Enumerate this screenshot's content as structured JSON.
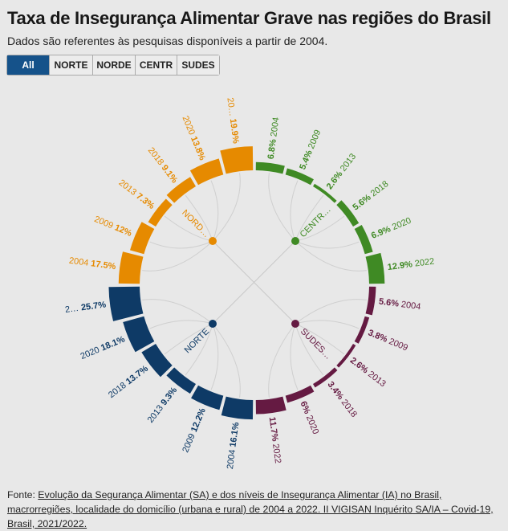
{
  "title": "Taxa de Insegurança Alimentar Grave nas regiões do Brasil",
  "subtitle": "Dados são referentes às pesquisas disponíveis a partir de 2004.",
  "buttons": [
    "All",
    "NORTE",
    "NORDE",
    "CENTR",
    "SUDES"
  ],
  "active_button": "All",
  "footer": {
    "prefix": "Fonte: ",
    "link_text": "Evolução da Segurança Alimentar (SA) e dos níveis de Insegurança Alimentar (IA) no Brasil, macrorregiões, localidade do domicílio (urbana e rural) de 2004 a 2022. II VIGISAN Inquérito SA/IA – Covid-19, Brasil, 2021/2022."
  },
  "chart_data": {
    "type": "radial-bar",
    "unit": "%",
    "categories": [
      "2004",
      "2009",
      "2013",
      "2018",
      "2020",
      "2022"
    ],
    "series": [
      {
        "name": "CENTR…",
        "color": "#3f8a24",
        "values": [
          6.8,
          5.4,
          2.6,
          5.6,
          6.9,
          12.9
        ],
        "value_labels": [
          "6.8%",
          "5.4%",
          "2.6%",
          "5.6%",
          "6.9%",
          "12.9%"
        ],
        "year_labels": [
          "2004",
          "2009",
          "2013",
          "2018",
          "2020",
          "2022"
        ]
      },
      {
        "name": "SUDES…",
        "color": "#651a42",
        "values": [
          5.6,
          3.8,
          2.6,
          3.4,
          6,
          11.7
        ],
        "value_labels": [
          "5.6%",
          "3.8%",
          "2.6%",
          "3.4%",
          "6%",
          "11.7%"
        ],
        "year_labels": [
          "2004",
          "2009",
          "2013",
          "2018",
          "2020",
          "2022"
        ]
      },
      {
        "name": "NORTE",
        "color": "#0e3a66",
        "values": [
          16.1,
          12.2,
          9.3,
          13.7,
          18.1,
          25.7
        ],
        "value_labels": [
          "16.1%",
          "12.2%",
          "9.3%",
          "13.7%",
          "18.1%",
          "25.7%"
        ],
        "year_labels": [
          "2004",
          "2009",
          "2013",
          "2018",
          "2020",
          "2…"
        ]
      },
      {
        "name": "NORD…",
        "color": "#e68a00",
        "values": [
          17.5,
          12,
          7.3,
          9.1,
          13.8,
          19.9
        ],
        "value_labels": [
          "17.5%",
          "12%",
          "7.3%",
          "9.1%",
          "13.8%",
          "19.9%"
        ],
        "year_labels": [
          "2004",
          "2009",
          "2013",
          "2018",
          "2020",
          "20…"
        ]
      }
    ]
  }
}
